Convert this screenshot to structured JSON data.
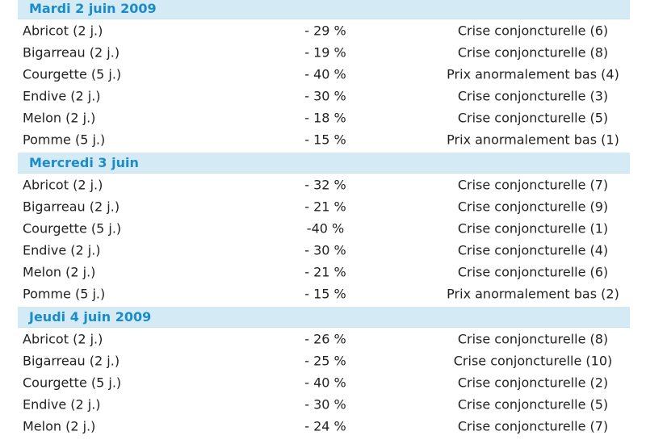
{
  "sections": [
    {
      "title": "Mardi 2 juin 2009",
      "rows": [
        [
          "Abricot (2 j.)",
          "- 29 %",
          "Crise conjoncturelle (6)"
        ],
        [
          "Bigarreau (2 j.)",
          "- 19 %",
          "Crise conjoncturelle (8)"
        ],
        [
          "Courgette (5 j.)",
          "- 40 %",
          "Prix anormalement bas (4)"
        ],
        [
          "Endive (2 j.)",
          "- 30 %",
          "Crise conjoncturelle (3)"
        ],
        [
          "Melon (2 j.)",
          "- 18 %",
          "Crise conjoncturelle (5)"
        ],
        [
          "Pomme (5 j.)",
          "- 15 %",
          "Prix anormalement bas (1)"
        ]
      ]
    },
    {
      "title": "Mercredi 3 juin",
      "rows": [
        [
          "Abricot (2 j.)",
          "- 32 %",
          "Crise conjoncturelle (7)"
        ],
        [
          "Bigarreau (2 j.)",
          "- 21 %",
          "Crise conjoncturelle (9)"
        ],
        [
          "Courgette (5 j.)",
          "-40 %",
          "Crise conjoncturelle (1)"
        ],
        [
          "Endive (2 j.)",
          "- 30 %",
          "Crise conjoncturelle (4)"
        ],
        [
          "Melon (2 j.)",
          "- 21 %",
          "Crise conjoncturelle (6)"
        ],
        [
          "Pomme (5 j.)",
          "- 15 %",
          "Prix anormalement bas (2)"
        ]
      ]
    },
    {
      "title": "Jeudi 4 juin 2009",
      "rows": [
        [
          "Abricot (2 j.)",
          "- 26 %",
          "Crise conjoncturelle (8)"
        ],
        [
          "Bigarreau (2 j.)",
          "- 25 %",
          "Crise conjoncturelle (10)"
        ],
        [
          "Courgette (5 j.)",
          "- 40 %",
          "Crise conjoncturelle (2)"
        ],
        [
          "Endive (2 j.)",
          "- 30 %",
          "Crise conjoncturelle (5)"
        ],
        [
          "Melon (2 j.)",
          "- 24 %",
          "Crise conjoncturelle (7)"
        ]
      ]
    }
  ]
}
